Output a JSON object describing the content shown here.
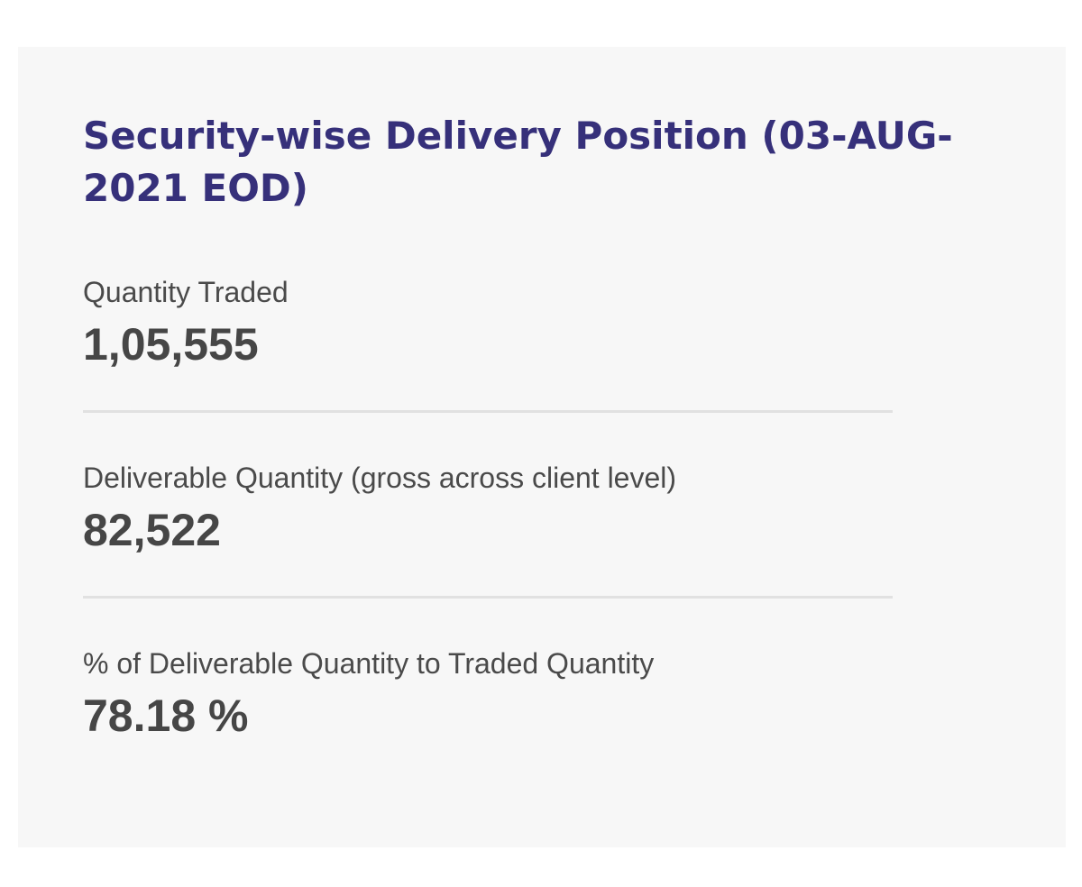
{
  "card": {
    "title": "Security-wise Delivery Position (03-AUG-2021 EOD)",
    "metrics": [
      {
        "label": "Quantity Traded",
        "value": "1,05,555"
      },
      {
        "label": "Deliverable Quantity (gross across client level)",
        "value": "82,522"
      },
      {
        "label": "% of Deliverable Quantity to Traded Quantity",
        "value": "78.18 %"
      }
    ]
  },
  "colors": {
    "title": "#36307a",
    "text": "#4a4a4a",
    "card_background": "#f7f7f7",
    "divider": "#e1e1e1"
  }
}
